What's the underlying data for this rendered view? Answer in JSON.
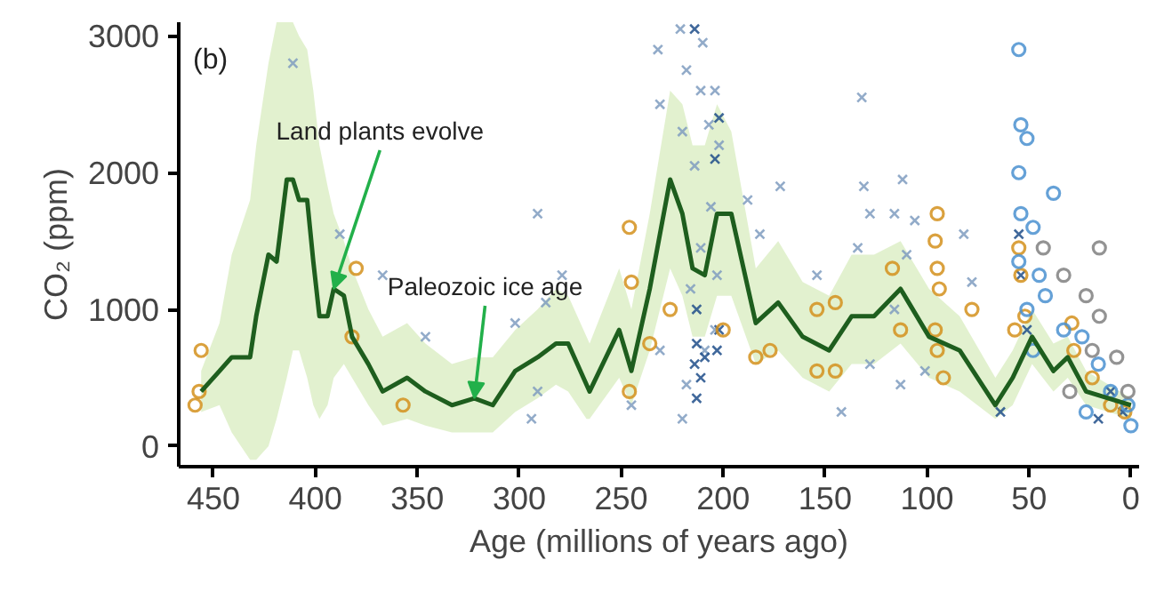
{
  "chart_data": {
    "type": "scatter",
    "xlabel": "Age (millions of years ago)",
    "ylabel": "CO₂ (ppm)",
    "xlim": [
      467,
      -4
    ],
    "ylim": [
      -150,
      3100
    ],
    "xticks": [
      450,
      400,
      350,
      300,
      250,
      200,
      150,
      100,
      50,
      0
    ],
    "yticks": [
      0,
      1000,
      2000,
      3000
    ],
    "annotations": [
      "(b)",
      {
        "text": "Land plants evolve",
        "x": 391,
        "y": 1150
      },
      {
        "text": "Paleozoic ice age",
        "x": 322,
        "y": 350
      }
    ],
    "series": [
      {
        "marker": "cross",
        "color": "#7f9cbf",
        "x": [
          411,
          388,
          367,
          346,
          291,
          279,
          287,
          302,
          291,
          294,
          232,
          221,
          218,
          231,
          220,
          210,
          211,
          204,
          207,
          202,
          214,
          206,
          211,
          203,
          216,
          204,
          209,
          218,
          220,
          231,
          188,
          172,
          182,
          154,
          132,
          131,
          128,
          112,
          116,
          106,
          110,
          134,
          82,
          78,
          113,
          142,
          128,
          101,
          116,
          245
        ],
        "values": [
          2800,
          1550,
          1250,
          800,
          1700,
          1250,
          1050,
          900,
          400,
          200,
          2900,
          3050,
          2750,
          2500,
          2300,
          2950,
          2600,
          2600,
          2350,
          2200,
          2050,
          1750,
          1450,
          1250,
          1150,
          850,
          700,
          450,
          200,
          700,
          1800,
          1900,
          1550,
          1250,
          2550,
          1900,
          1700,
          1950,
          1700,
          1650,
          1400,
          1450,
          1550,
          1200,
          450,
          250,
          600,
          550,
          1000,
          300
        ]
      },
      {
        "marker": "cross",
        "color": "#1f4e8a",
        "x": [
          214,
          213,
          214,
          211,
          213,
          202,
          203,
          213,
          209,
          202,
          204,
          55,
          54,
          51,
          64,
          4,
          10,
          16
        ],
        "values": [
          3050,
          750,
          600,
          500,
          350,
          850,
          700,
          1000,
          650,
          2400,
          2100,
          1550,
          1250,
          850,
          250,
          250,
          400,
          200
        ]
      },
      {
        "marker": "circle",
        "color": "#d4901c",
        "x": [
          456,
          459,
          457,
          380,
          382,
          357,
          246,
          245,
          226,
          246,
          236,
          200,
          184,
          177,
          154,
          145,
          154,
          145,
          95,
          96,
          95,
          94,
          96,
          95,
          92,
          117,
          113,
          78,
          55,
          54,
          52,
          57,
          29,
          28,
          19,
          10,
          3
        ],
        "values": [
          700,
          300,
          400,
          1300,
          800,
          300,
          1600,
          1200,
          1000,
          400,
          750,
          850,
          650,
          700,
          1000,
          1050,
          550,
          550,
          1700,
          1500,
          1300,
          1150,
          850,
          700,
          500,
          1300,
          850,
          1000,
          1450,
          1250,
          950,
          850,
          900,
          700,
          500,
          300,
          250
        ]
      },
      {
        "marker": "circle",
        "color": "#4a90d0",
        "x": [
          55,
          54,
          51,
          55,
          38,
          54,
          48,
          55,
          45,
          42,
          51,
          33,
          24,
          16,
          10,
          1.5,
          0,
          48,
          22
        ],
        "values": [
          2900,
          2350,
          2250,
          2000,
          1850,
          1700,
          1600,
          1350,
          1250,
          1100,
          1000,
          850,
          800,
          600,
          400,
          300,
          150,
          700,
          250
        ]
      },
      {
        "marker": "circle",
        "color": "#808080",
        "x": [
          15.5,
          22,
          33,
          43,
          15.5,
          7,
          30,
          19,
          1.5
        ],
        "values": [
          1450,
          1100,
          1250,
          1450,
          950,
          650,
          400,
          700,
          400
        ]
      },
      {
        "type": "line",
        "marker": "none",
        "color": "#1e5e1e",
        "x": [
          456,
          447,
          441,
          432,
          429,
          423,
          419,
          414,
          411,
          408,
          404,
          401,
          398,
          394,
          391,
          386,
          382,
          374,
          367,
          355,
          346,
          333,
          322,
          313,
          302,
          291,
          282,
          276,
          267,
          265.5,
          251,
          245,
          236,
          226,
          220,
          215,
          209,
          203,
          196,
          184,
          173,
          161,
          148,
          137,
          126,
          113,
          99,
          84,
          66.5,
          58,
          48.5,
          38,
          31,
          22,
          0
        ],
        "values": [
          400,
          550,
          650,
          650,
          950,
          1400,
          1350,
          1950,
          1950,
          1800,
          1800,
          1350,
          950,
          950,
          1150,
          1100,
          800,
          600,
          400,
          500,
          400,
          300,
          350,
          300,
          550,
          650,
          750,
          750,
          450,
          400,
          850,
          550,
          1150,
          1950,
          1700,
          1300,
          1250,
          1700,
          1700,
          900,
          1050,
          800,
          700,
          950,
          950,
          1150,
          800,
          700,
          300,
          500,
          800,
          550,
          650,
          400,
          300
        ],
        "lower": [
          250,
          300,
          100,
          -100,
          -100,
          0,
          200,
          500,
          700,
          700,
          500,
          300,
          200,
          300,
          500,
          600,
          500,
          300,
          150,
          200,
          150,
          100,
          100,
          100,
          250,
          350,
          450,
          400,
          200,
          200,
          500,
          300,
          700,
          1300,
          1100,
          800,
          800,
          1100,
          1100,
          600,
          700,
          500,
          400,
          600,
          600,
          750,
          500,
          400,
          200,
          300,
          600,
          400,
          500,
          300,
          200
        ],
        "upper": [
          550,
          900,
          1400,
          1800,
          2200,
          2800,
          3100,
          3100,
          3100,
          3000,
          2900,
          2600,
          2200,
          1900,
          1700,
          1500,
          1300,
          1000,
          800,
          900,
          750,
          600,
          650,
          650,
          850,
          1000,
          1150,
          1100,
          800,
          750,
          1300,
          1000,
          1700,
          2600,
          2500,
          2200,
          2200,
          2500,
          2300,
          1300,
          1500,
          1200,
          1100,
          1400,
          1400,
          1500,
          1150,
          950,
          500,
          700,
          1000,
          750,
          800,
          550,
          350
        ]
      }
    ]
  }
}
